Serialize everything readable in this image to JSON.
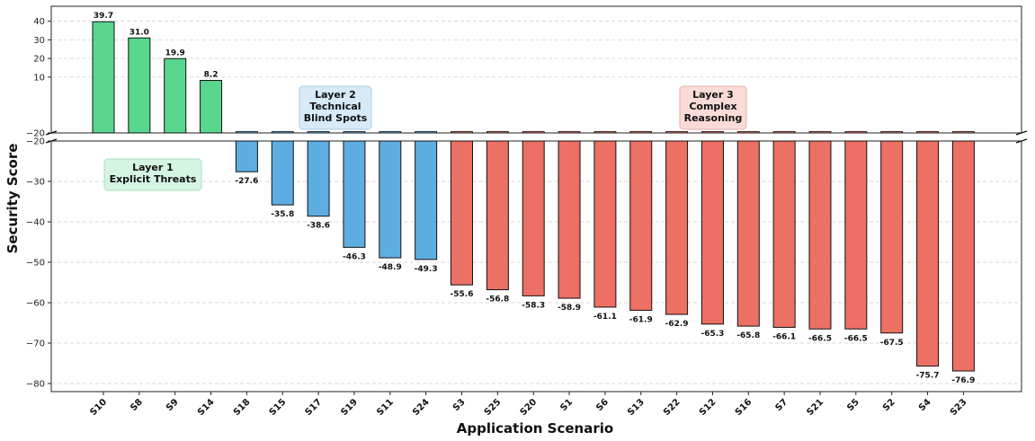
{
  "chart_data": {
    "type": "bar",
    "title": "",
    "xlabel": "Application Scenario",
    "ylabel": "Security Score",
    "ylim_upper": [
      -20,
      48
    ],
    "ylim_lower": [
      -82,
      -20
    ],
    "grid": true,
    "yticks_upper": [
      40,
      30,
      20,
      10,
      -20
    ],
    "yticks_lower": [
      -20,
      -30,
      -40,
      -50,
      -60,
      -70,
      -80
    ],
    "categories": [
      "S10",
      "S8",
      "S9",
      "S14",
      "S18",
      "S15",
      "S17",
      "S19",
      "S11",
      "S24",
      "S3",
      "S25",
      "S20",
      "S1",
      "S6",
      "S13",
      "S22",
      "S12",
      "S16",
      "S7",
      "S21",
      "S5",
      "S2",
      "S4",
      "S23"
    ],
    "values": [
      39.7,
      31.0,
      19.9,
      8.2,
      -27.6,
      -35.8,
      -38.6,
      -46.3,
      -48.9,
      -49.3,
      -55.6,
      -56.8,
      -58.3,
      -58.9,
      -61.1,
      -61.9,
      -62.9,
      -65.3,
      -65.8,
      -66.1,
      -66.5,
      -66.5,
      -67.5,
      -75.7,
      -76.9
    ],
    "value_labels": [
      "39.7",
      "31.0",
      "19.9",
      "8.2",
      "-27.6",
      "-35.8",
      "-38.6",
      "-46.3",
      "-48.9",
      "-49.3",
      "-55.6",
      "-56.8",
      "-58.3",
      "-58.9",
      "-61.1",
      "-61.9",
      "-62.9",
      "-65.3",
      "-65.8",
      "-66.1",
      "-66.5",
      "-66.5",
      "-67.5",
      "-75.7",
      "-76.9"
    ],
    "layers": [
      1,
      1,
      1,
      1,
      2,
      2,
      2,
      2,
      2,
      2,
      3,
      3,
      3,
      3,
      3,
      3,
      3,
      3,
      3,
      3,
      3,
      3,
      3,
      3,
      3
    ],
    "layer_colors": {
      "1": "#58d68d",
      "2": "#5dade2",
      "3": "#ec7063"
    },
    "annotations": [
      {
        "layer": 1,
        "lines": [
          "Layer 1",
          "Explicit Threats"
        ],
        "bg": "#d5f5e3",
        "border": "#a9dfbf"
      },
      {
        "layer": 2,
        "lines": [
          "Layer 2",
          "Technical",
          "Blind Spots"
        ],
        "bg": "#d6eaf8",
        "border": "#a9cce3"
      },
      {
        "layer": 3,
        "lines": [
          "Layer 3",
          "Complex",
          "Reasoning"
        ],
        "bg": "#fadbd8",
        "border": "#e6b0aa"
      }
    ]
  }
}
